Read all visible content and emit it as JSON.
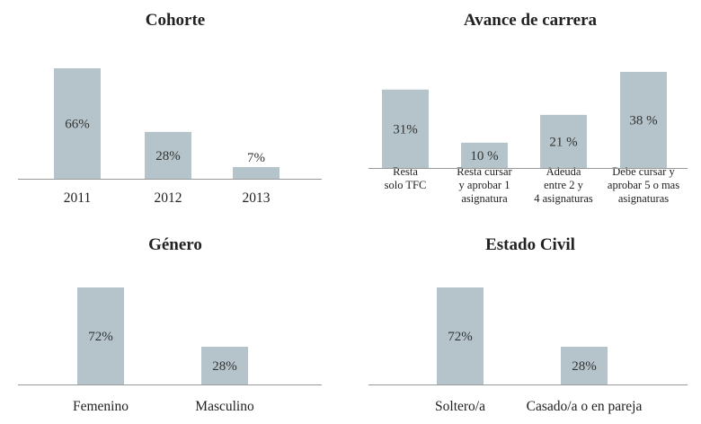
{
  "chart_data": [
    {
      "type": "bar",
      "title": "Cohorte",
      "categories": [
        "2011",
        "2012",
        "2013"
      ],
      "values": [
        66,
        28,
        7
      ],
      "value_labels": [
        "66%",
        "28%",
        "7%"
      ],
      "ylim": [
        0,
        66
      ],
      "grid": false
    },
    {
      "type": "bar",
      "title": "Avance de carrera",
      "categories": [
        [
          "Resta",
          "solo TFC"
        ],
        [
          "Resta cursar",
          "y aprobar 1",
          "asignatura"
        ],
        [
          "Adeuda",
          "entre 2 y",
          "4 asignaturas"
        ],
        [
          "Debe cursar y",
          "aprobar 5 o mas",
          "asignaturas"
        ]
      ],
      "values": [
        31,
        10,
        21,
        38
      ],
      "value_labels": [
        "31%",
        "10 %",
        "21 %",
        "38 %"
      ],
      "ylim": [
        0,
        38
      ],
      "grid": false
    },
    {
      "type": "bar",
      "title": "Género",
      "categories": [
        "Femenino",
        "Masculino"
      ],
      "values": [
        72,
        28
      ],
      "value_labels": [
        "72%",
        "28%"
      ],
      "ylim": [
        0,
        72
      ],
      "grid": false
    },
    {
      "type": "bar",
      "title": "Estado Civil",
      "categories": [
        "Soltero/a",
        "Casado/a o en pareja"
      ],
      "values": [
        72,
        28
      ],
      "value_labels": [
        "72%",
        "28%"
      ],
      "ylim": [
        0,
        72
      ],
      "grid": false
    }
  ],
  "colors": {
    "bar": "#b4c4ca",
    "axis": "#999999"
  }
}
